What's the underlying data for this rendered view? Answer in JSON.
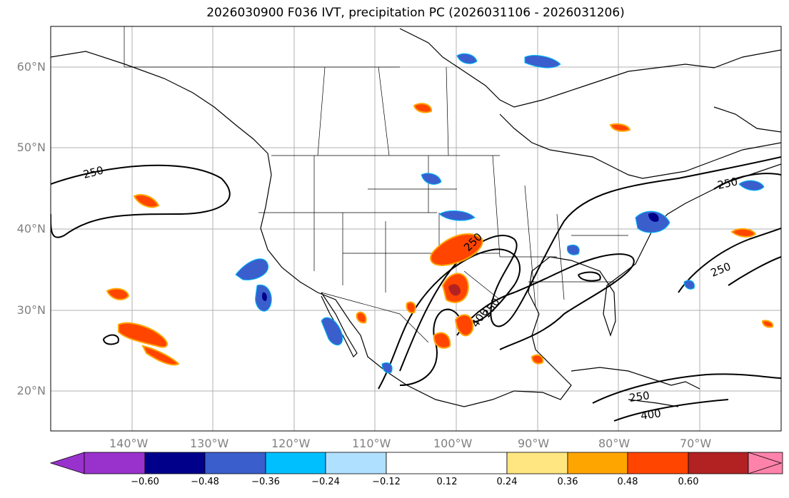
{
  "title": "2026030900 F036 IVT, precipitation PC (2026031106 - 2026031206)",
  "map": {
    "lat_labels": [
      "60°N",
      "50°N",
      "40°N",
      "30°N",
      "20°N"
    ],
    "lon_labels": [
      "140°W",
      "130°W",
      "120°W",
      "110°W",
      "100°W",
      "90°W",
      "80°W",
      "70°W"
    ],
    "contour_labels": [
      "250",
      "250",
      "250",
      "250",
      "250",
      "400",
      "250",
      "400"
    ]
  },
  "colorbar": {
    "tick_labels": [
      "−0.60",
      "−0.48",
      "−0.36",
      "−0.24",
      "−0.12",
      "0.12",
      "0.24",
      "0.36",
      "0.48",
      "0.60"
    ],
    "colors": [
      "#9932cc",
      "#00008b",
      "#3a5fcd",
      "#00bfff",
      "#b0e0ff",
      "#ffffff",
      "#ffe680",
      "#ffa500",
      "#ff4500",
      "#b22222",
      "#ff82ab"
    ]
  }
}
